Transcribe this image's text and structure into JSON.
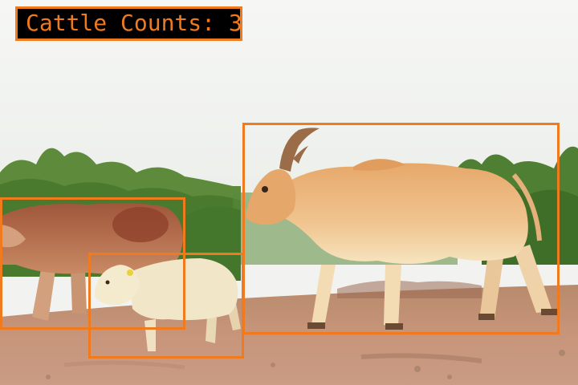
{
  "overlay": {
    "label_prefix": "Cattle Counts:",
    "count": 3,
    "label_text": "Cattle Counts: 3",
    "box_color": "#f07a1e",
    "label_background": "#000000"
  },
  "detections": [
    {
      "class": "cattle",
      "subject": "adult zebu bull with curved horns, walking right"
    },
    {
      "class": "cattle",
      "subject": "brown cow at left edge"
    },
    {
      "class": "cattle",
      "subject": "cream calf with yellow ear tag"
    }
  ],
  "scene": {
    "sky_color": "#f3f4f2",
    "vegetation_color": "#4f7f33",
    "ground_color": "#c48e6a"
  }
}
